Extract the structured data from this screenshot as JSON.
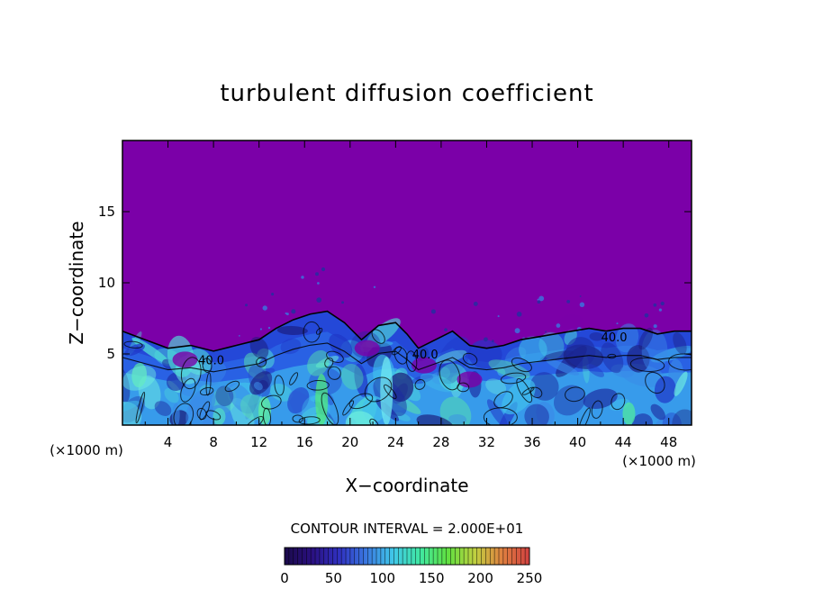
{
  "chart_data": {
    "type": "heatmap",
    "title": "turbulent diffusion coefficient",
    "xlabel": "X−coordinate",
    "ylabel": "Z−coordinate",
    "x_unit_label": "(×1000 m)",
    "z_unit_label": "(×1000 m)",
    "xlim": [
      0,
      50
    ],
    "ylim": [
      0,
      20
    ],
    "x_ticks": [
      4,
      8,
      12,
      16,
      20,
      24,
      28,
      32,
      36,
      40,
      44,
      48
    ],
    "y_ticks": [
      5,
      10,
      15
    ],
    "contour_interval_text": "CONTOUR INTERVAL = 2.000E+01",
    "contour_labels": [
      {
        "text": "40.0",
        "x": 7.8,
        "z": 4.6
      },
      {
        "text": "40.0",
        "x": 26.6,
        "z": 5.0
      },
      {
        "text": "40.0",
        "x": 43.2,
        "z": 6.2
      }
    ],
    "colorbar": {
      "min": 0,
      "max": 250,
      "tick_values": [
        0,
        50,
        100,
        150,
        200,
        250
      ],
      "colors": [
        "#1a0a4a",
        "#2a1080",
        "#3030c0",
        "#3a78e0",
        "#40c8e8",
        "#40e8a0",
        "#60e040",
        "#c0d040",
        "#e08040",
        "#d04040"
      ]
    },
    "background_color": "#7b00a8",
    "boundary_layer_top": [
      [
        0,
        6.6
      ],
      [
        2,
        6.0
      ],
      [
        4,
        5.4
      ],
      [
        6,
        5.6
      ],
      [
        8,
        5.2
      ],
      [
        10,
        5.6
      ],
      [
        12,
        6.0
      ],
      [
        13.5,
        6.8
      ],
      [
        15,
        7.4
      ],
      [
        16.5,
        7.8
      ],
      [
        18,
        8.0
      ],
      [
        19.5,
        7.2
      ],
      [
        21,
        6.0
      ],
      [
        22.5,
        7.0
      ],
      [
        24,
        7.2
      ],
      [
        25,
        6.4
      ],
      [
        26,
        5.4
      ],
      [
        27.5,
        6.0
      ],
      [
        29,
        6.6
      ],
      [
        30.5,
        5.6
      ],
      [
        32,
        5.4
      ],
      [
        33.5,
        5.6
      ],
      [
        35,
        6.0
      ],
      [
        36.5,
        6.2
      ],
      [
        38,
        6.4
      ],
      [
        39.5,
        6.6
      ],
      [
        41,
        6.8
      ],
      [
        42.5,
        6.6
      ],
      [
        44,
        6.8
      ],
      [
        45.5,
        6.8
      ],
      [
        47,
        6.4
      ],
      [
        48.5,
        6.6
      ],
      [
        50,
        6.6
      ]
    ]
  }
}
